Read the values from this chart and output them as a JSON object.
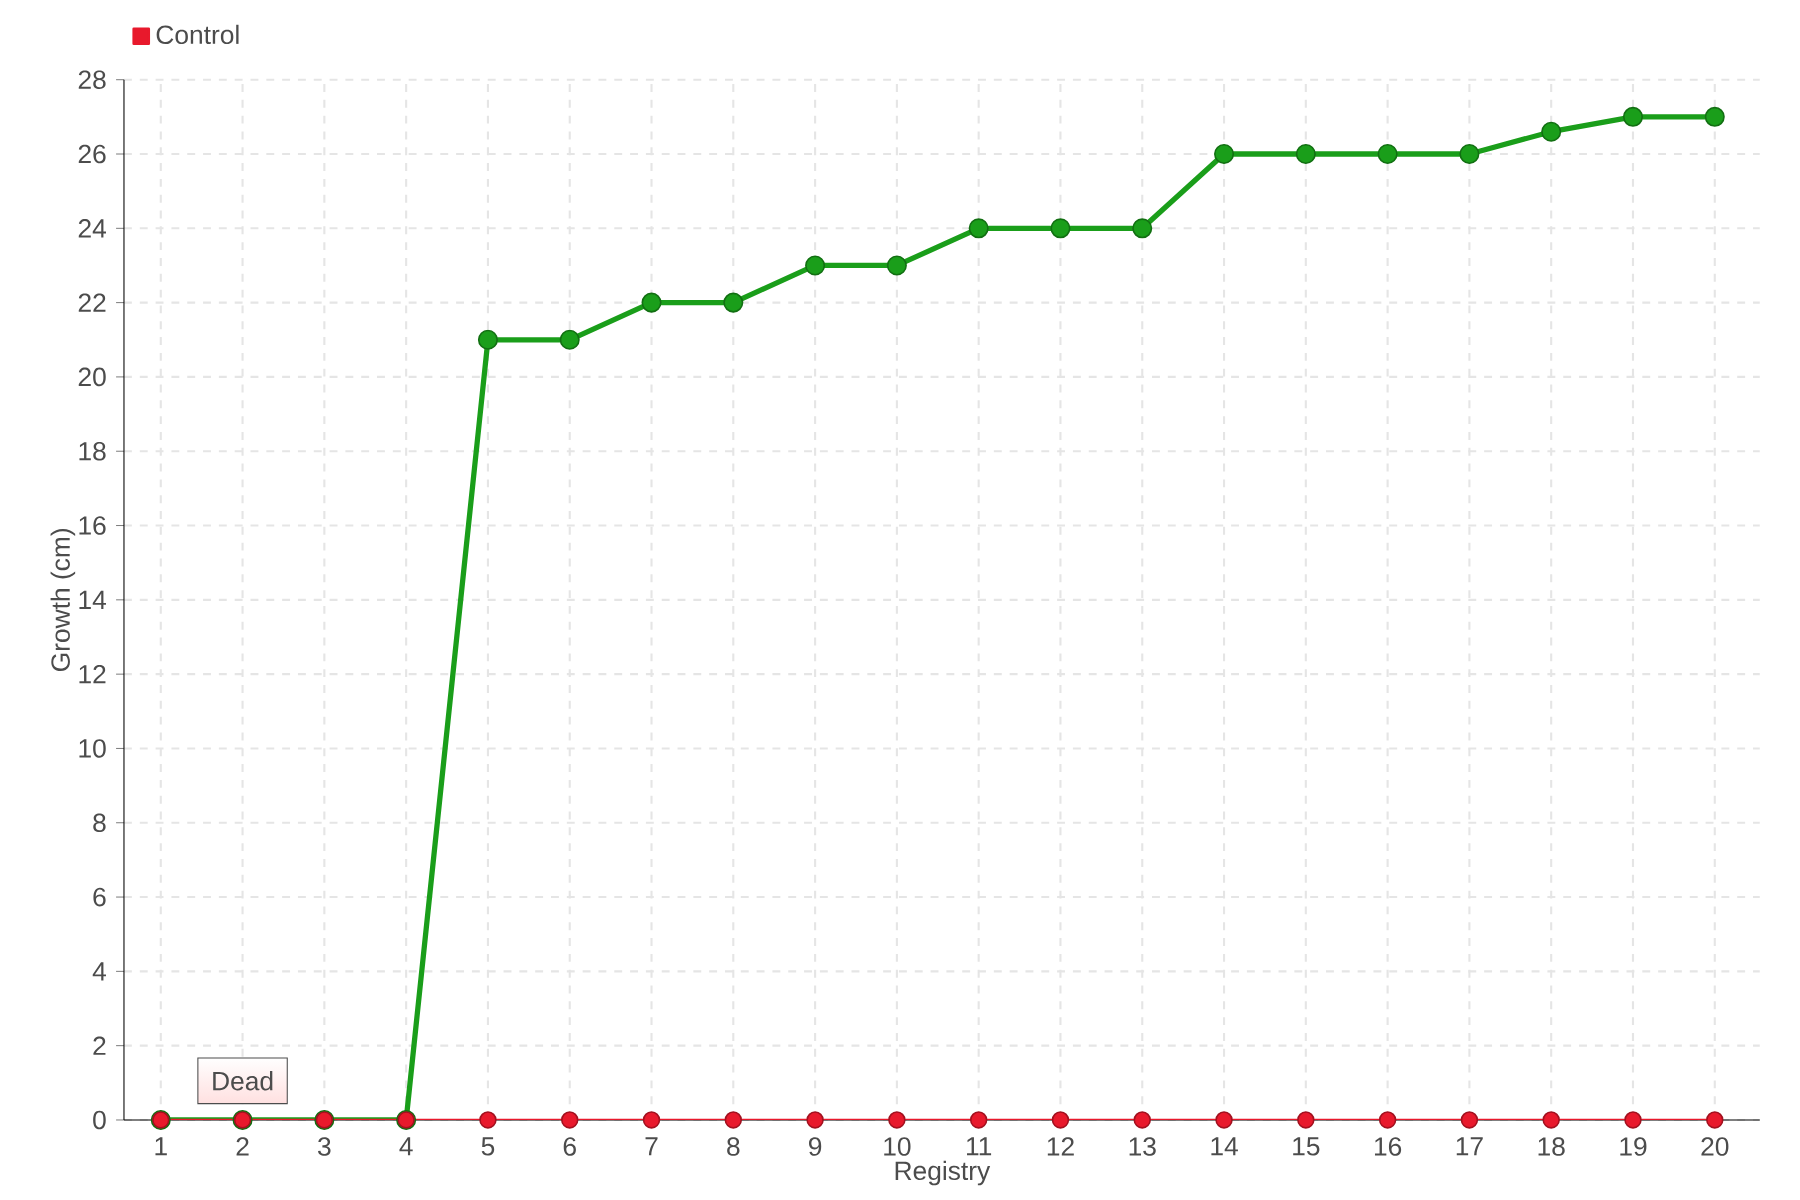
{
  "chart_data": {
    "type": "line",
    "xlabel": "Registry",
    "ylabel": "Growth (cm)",
    "categories": [
      "1",
      "2",
      "3",
      "4",
      "5",
      "6",
      "7",
      "8",
      "9",
      "10",
      "11",
      "12",
      "13",
      "14",
      "15",
      "16",
      "17",
      "18",
      "19",
      "20"
    ],
    "series": [
      {
        "color": "#1a9e1a",
        "values": [
          0,
          0,
          0,
          0,
          21,
          21,
          22,
          22,
          23,
          23,
          24,
          24,
          24,
          26,
          26,
          26,
          26,
          26.6,
          27,
          27
        ]
      },
      {
        "name": "Control",
        "color": "#e8192c",
        "values": [
          0,
          0,
          0,
          0,
          0,
          0,
          0,
          0,
          0,
          0,
          0,
          0,
          0,
          0,
          0,
          0,
          0,
          0,
          0,
          0
        ]
      }
    ],
    "ylim": [
      0,
      28
    ],
    "yticks": [
      0,
      2,
      4,
      6,
      8,
      10,
      12,
      14,
      16,
      18,
      20,
      22,
      24,
      26,
      28
    ],
    "grid": true,
    "legend": "top left",
    "marker": "circle",
    "line_style": "solid",
    "annotations": [
      {
        "text": "Dead",
        "x": "2",
        "y": 0
      }
    ]
  }
}
